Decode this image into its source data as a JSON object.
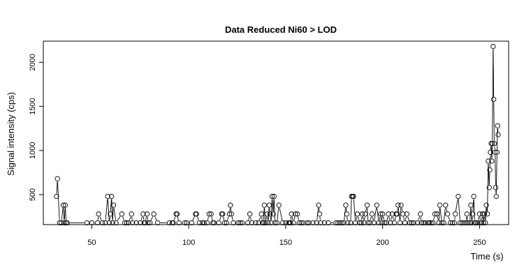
{
  "chart_data": {
    "type": "line",
    "title": "Data Reduced Ni60 > LOD",
    "xlabel": "Time (s)",
    "ylabel": "Signal intensity (cps)",
    "xlim": [
      25,
      265
    ],
    "ylim": [
      160,
      2240
    ],
    "x_ticks": [
      50,
      100,
      150,
      200,
      250
    ],
    "y_ticks": [
      500,
      1000,
      1500,
      2000
    ],
    "grid": false,
    "legend": "none",
    "series": [
      {
        "points": [
          [
            31.8,
            480
          ],
          [
            32.3,
            680
          ],
          [
            33.4,
            180
          ],
          [
            34.3,
            180
          ],
          [
            35.3,
            380
          ],
          [
            35.8,
            180
          ],
          [
            36.3,
            380
          ],
          [
            36.8,
            180
          ],
          [
            37.3,
            180
          ],
          [
            47.5,
            180
          ],
          [
            50.0,
            180
          ],
          [
            53.0,
            180
          ],
          [
            53.5,
            280
          ],
          [
            55.5,
            180
          ],
          [
            57.0,
            180
          ],
          [
            58.2,
            480
          ],
          [
            59.0,
            180
          ],
          [
            59.6,
            280
          ],
          [
            60.2,
            480
          ],
          [
            60.7,
            180
          ],
          [
            61.2,
            380
          ],
          [
            62.5,
            180
          ],
          [
            65.5,
            280
          ],
          [
            67.0,
            180
          ],
          [
            68.0,
            180
          ],
          [
            69.0,
            180
          ],
          [
            70.5,
            280
          ],
          [
            71.0,
            180
          ],
          [
            73.0,
            180
          ],
          [
            75.0,
            180
          ],
          [
            76.5,
            280
          ],
          [
            77.0,
            180
          ],
          [
            77.5,
            180
          ],
          [
            78.5,
            280
          ],
          [
            79.0,
            180
          ],
          [
            80.0,
            180
          ],
          [
            82.0,
            280
          ],
          [
            84.0,
            180
          ],
          [
            90.0,
            180
          ],
          [
            91.5,
            180
          ],
          [
            92.0,
            180
          ],
          [
            93.5,
            280
          ],
          [
            94.0,
            280
          ],
          [
            95.0,
            180
          ],
          [
            98.0,
            180
          ],
          [
            99.0,
            180
          ],
          [
            101.5,
            180
          ],
          [
            103.5,
            280
          ],
          [
            104.0,
            280
          ],
          [
            105.5,
            180
          ],
          [
            107.0,
            180
          ],
          [
            108.0,
            180
          ],
          [
            109.5,
            180
          ],
          [
            110.5,
            280
          ],
          [
            111.5,
            280
          ],
          [
            112.5,
            180
          ],
          [
            113.0,
            180
          ],
          [
            115.5,
            180
          ],
          [
            117.0,
            280
          ],
          [
            117.5,
            280
          ],
          [
            118.5,
            180
          ],
          [
            119.5,
            180
          ],
          [
            121.0,
            280
          ],
          [
            121.5,
            380
          ],
          [
            122.0,
            280
          ],
          [
            123.0,
            180
          ],
          [
            125.5,
            180
          ],
          [
            126.5,
            180
          ],
          [
            127.5,
            180
          ],
          [
            130.5,
            180
          ],
          [
            131.5,
            280
          ],
          [
            132.5,
            180
          ],
          [
            134.5,
            180
          ],
          [
            136.0,
            180
          ],
          [
            137.5,
            280
          ],
          [
            138.0,
            180
          ],
          [
            138.5,
            180
          ],
          [
            139.0,
            380
          ],
          [
            139.5,
            180
          ],
          [
            140.5,
            280
          ],
          [
            141.0,
            180
          ],
          [
            141.5,
            380
          ],
          [
            142.0,
            280
          ],
          [
            142.5,
            180
          ],
          [
            143.0,
            480
          ],
          [
            143.5,
            280
          ],
          [
            144.0,
            480
          ],
          [
            144.5,
            180
          ],
          [
            145.5,
            180
          ],
          [
            146.5,
            380
          ],
          [
            148.5,
            180
          ],
          [
            150.0,
            180
          ],
          [
            151.5,
            180
          ],
          [
            152.0,
            180
          ],
          [
            152.5,
            180
          ],
          [
            153.0,
            280
          ],
          [
            154.0,
            180
          ],
          [
            155.0,
            280
          ],
          [
            156.0,
            280
          ],
          [
            157.0,
            180
          ],
          [
            158.0,
            180
          ],
          [
            159.0,
            180
          ],
          [
            161.0,
            180
          ],
          [
            162.0,
            180
          ],
          [
            164.0,
            180
          ],
          [
            166.0,
            180
          ],
          [
            167.0,
            380
          ],
          [
            167.5,
            280
          ],
          [
            168.0,
            180
          ],
          [
            170.0,
            180
          ],
          [
            172.0,
            180
          ],
          [
            176.0,
            180
          ],
          [
            177.0,
            180
          ],
          [
            178.0,
            180
          ],
          [
            179.0,
            180
          ],
          [
            180.0,
            180
          ],
          [
            181.0,
            380
          ],
          [
            181.5,
            280
          ],
          [
            182.0,
            180
          ],
          [
            183.5,
            180
          ],
          [
            184.0,
            480
          ],
          [
            184.5,
            480
          ],
          [
            185.0,
            480
          ],
          [
            186.0,
            180
          ],
          [
            187.0,
            280
          ],
          [
            188.0,
            180
          ],
          [
            189.0,
            180
          ],
          [
            189.5,
            280
          ],
          [
            190.5,
            180
          ],
          [
            191.0,
            280
          ],
          [
            192.0,
            380
          ],
          [
            192.5,
            180
          ],
          [
            193.5,
            180
          ],
          [
            194.5,
            280
          ],
          [
            195.5,
            180
          ],
          [
            197.0,
            380
          ],
          [
            198.0,
            180
          ],
          [
            199.0,
            280
          ],
          [
            199.5,
            180
          ],
          [
            200.0,
            280
          ],
          [
            201.0,
            180
          ],
          [
            202.0,
            180
          ],
          [
            203.0,
            280
          ],
          [
            204.0,
            180
          ],
          [
            205.0,
            280
          ],
          [
            206.0,
            180
          ],
          [
            207.0,
            280
          ],
          [
            207.5,
            280
          ],
          [
            208.0,
            380
          ],
          [
            209.0,
            180
          ],
          [
            209.5,
            380
          ],
          [
            210.5,
            280
          ],
          [
            211.5,
            180
          ],
          [
            212.5,
            280
          ],
          [
            214.0,
            180
          ],
          [
            215.0,
            180
          ],
          [
            216.0,
            180
          ],
          [
            218.0,
            180
          ],
          [
            219.5,
            280
          ],
          [
            220.0,
            180
          ],
          [
            221.0,
            180
          ],
          [
            222.0,
            180
          ],
          [
            223.5,
            180
          ],
          [
            224.0,
            180
          ],
          [
            225.0,
            180
          ],
          [
            226.0,
            180
          ],
          [
            227.0,
            280
          ],
          [
            228.0,
            280
          ],
          [
            229.0,
            180
          ],
          [
            229.5,
            380
          ],
          [
            230.5,
            180
          ],
          [
            231.5,
            180
          ],
          [
            232.5,
            380
          ],
          [
            233.5,
            280
          ],
          [
            235.0,
            180
          ],
          [
            236.0,
            180
          ],
          [
            237.0,
            180
          ],
          [
            237.5,
            280
          ],
          [
            239.0,
            480
          ],
          [
            240.0,
            180
          ],
          [
            241.0,
            180
          ],
          [
            242.0,
            180
          ],
          [
            243.0,
            180
          ],
          [
            243.5,
            280
          ],
          [
            244.0,
            180
          ],
          [
            245.0,
            180
          ],
          [
            245.5,
            380
          ],
          [
            246.0,
            180
          ],
          [
            246.5,
            280
          ],
          [
            247.0,
            480
          ],
          [
            247.5,
            180
          ],
          [
            248.0,
            180
          ],
          [
            249.0,
            180
          ],
          [
            250.0,
            280
          ],
          [
            250.5,
            180
          ],
          [
            251.0,
            180
          ],
          [
            251.5,
            280
          ],
          [
            252.0,
            180
          ],
          [
            252.5,
            280
          ],
          [
            253.0,
            180
          ],
          [
            253.5,
            380
          ],
          [
            254.0,
            280
          ],
          [
            254.5,
            880
          ],
          [
            255.0,
            580
          ],
          [
            255.3,
            780
          ],
          [
            255.6,
            980
          ],
          [
            256.0,
            1080
          ],
          [
            256.3,
            880
          ],
          [
            256.6,
            1080
          ],
          [
            257.0,
            2180
          ],
          [
            257.3,
            1580
          ],
          [
            257.6,
            1080
          ],
          [
            258.0,
            980
          ],
          [
            258.3,
            580
          ],
          [
            258.6,
            480
          ],
          [
            259.0,
            980
          ],
          [
            259.3,
            1280
          ],
          [
            259.6,
            1180
          ]
        ]
      }
    ]
  }
}
